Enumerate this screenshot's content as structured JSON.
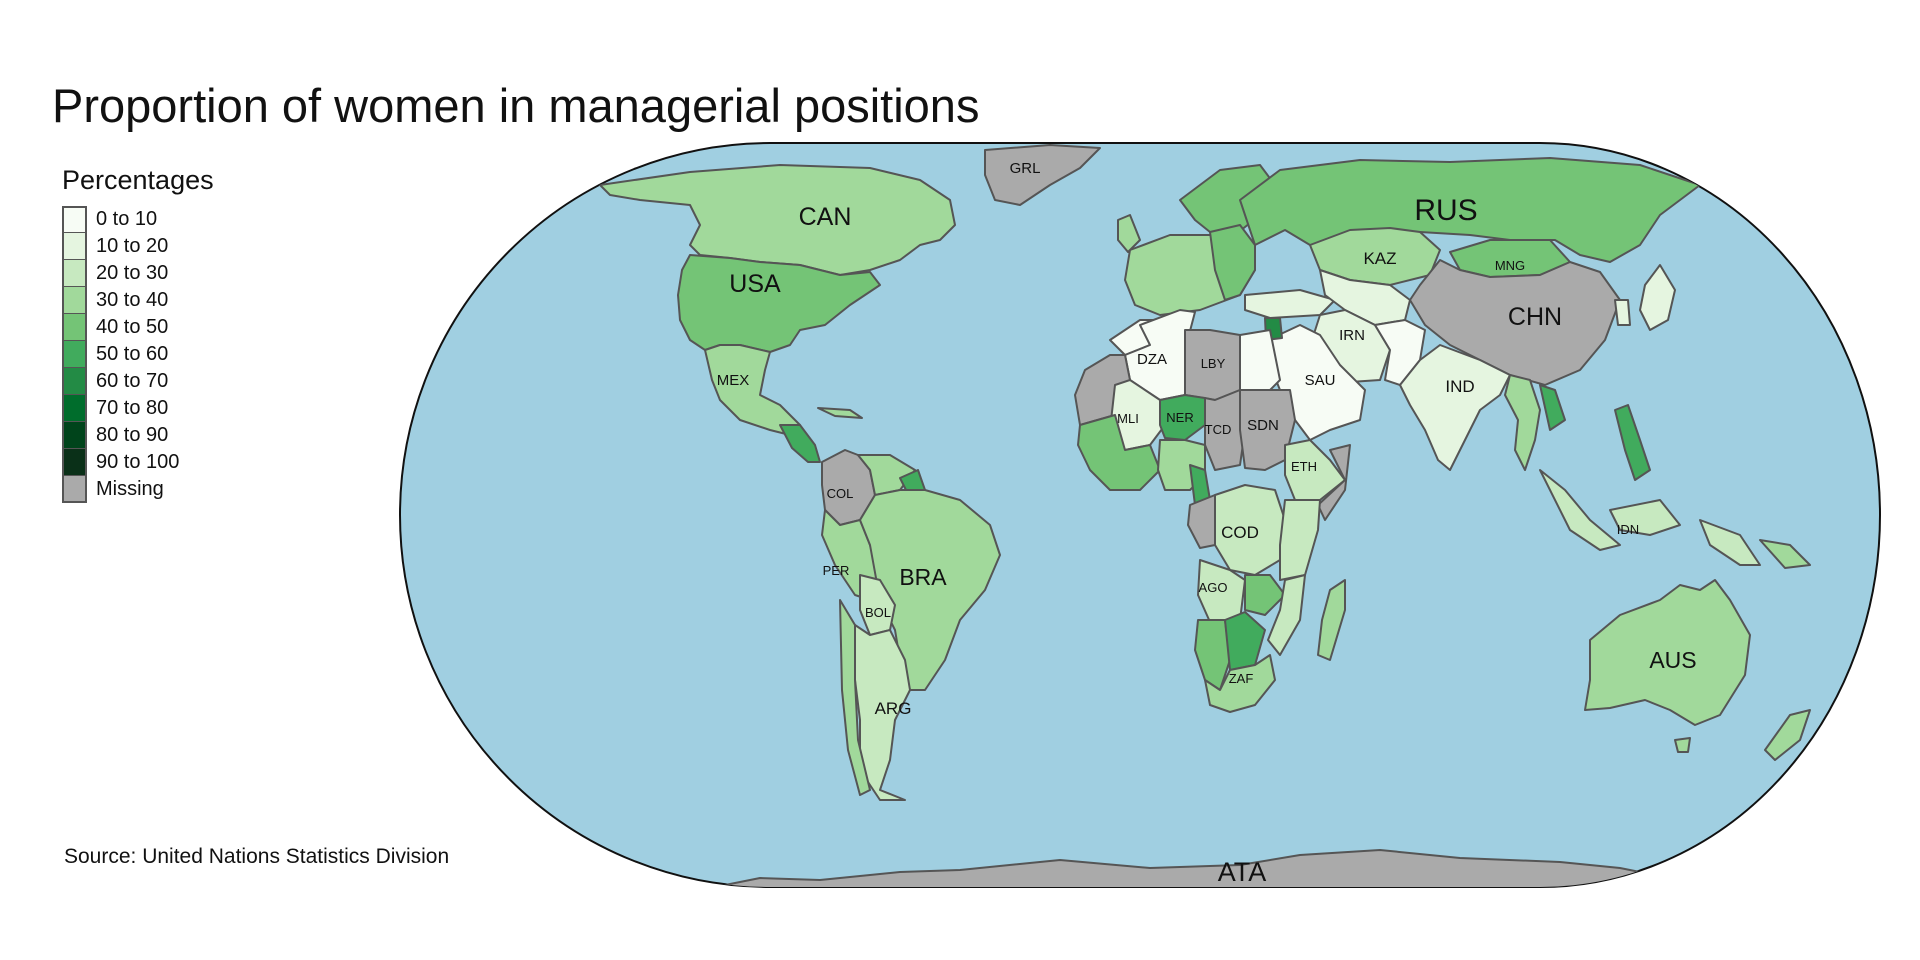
{
  "title": "Proportion of women in managerial positions",
  "source": "Source: United Nations Statistics Division",
  "legend": {
    "title": "Percentages",
    "items": [
      {
        "label": "0 to 10",
        "color": "#f7fcf5"
      },
      {
        "label": "10 to 20",
        "color": "#e5f5e0"
      },
      {
        "label": "20 to 30",
        "color": "#c7e9c0"
      },
      {
        "label": "30 to 40",
        "color": "#a1d99b"
      },
      {
        "label": "40 to 50",
        "color": "#74c476"
      },
      {
        "label": "50 to 60",
        "color": "#41ab5d"
      },
      {
        "label": "60 to 70",
        "color": "#238b45"
      },
      {
        "label": "70 to 80",
        "color": "#006d2c"
      },
      {
        "label": "80 to 90",
        "color": "#00441b"
      },
      {
        "label": "90 to 100",
        "color": "#0a3018"
      },
      {
        "label": "Missing",
        "color": "#aaaaaa"
      }
    ]
  },
  "colors": {
    "ocean": "#a0cfe1",
    "border": "#555555",
    "missing": "#aaaaaa"
  },
  "country_labels": {
    "GRL": "GRL",
    "CAN": "CAN",
    "USA": "USA",
    "MEX": "MEX",
    "COL": "COL",
    "PER": "PER",
    "BRA": "BRA",
    "BOL": "BOL",
    "ARG": "ARG",
    "RUS": "RUS",
    "KAZ": "KAZ",
    "MNG": "MNG",
    "CHN": "CHN",
    "IRN": "IRN",
    "IND": "IND",
    "SAU": "SAU",
    "DZA": "DZA",
    "LBY": "LBY",
    "MLI": "MLI",
    "NER": "NER",
    "TCD": "TCD",
    "SDN": "SDN",
    "ETH": "ETH",
    "COD": "COD",
    "AGO": "AGO",
    "ZAF": "ZAF",
    "IDN": "IDN",
    "AUS": "AUS",
    "ATA": "ATA"
  }
}
